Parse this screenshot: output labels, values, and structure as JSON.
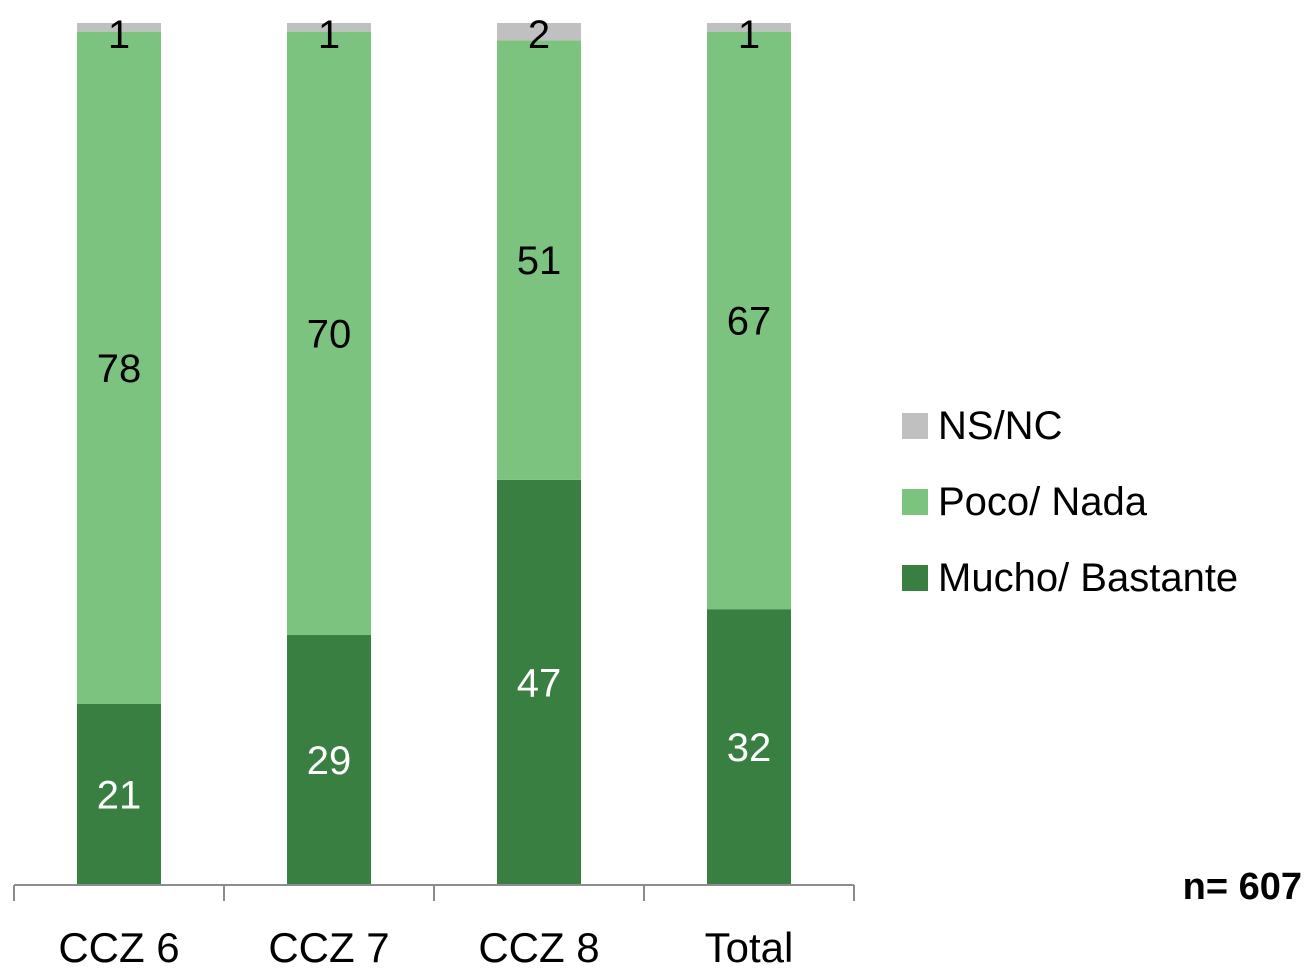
{
  "chart_data": {
    "type": "bar",
    "stacked": true,
    "categories": [
      "CCZ 6",
      "CCZ 7",
      "CCZ 8",
      "Total"
    ],
    "series": [
      {
        "name": "Mucho/ Bastante",
        "values": [
          21,
          29,
          47,
          32
        ],
        "color": "#3a7f42",
        "label_color": "#ffffff"
      },
      {
        "name": "Poco/ Nada",
        "values": [
          78,
          70,
          51,
          67
        ],
        "color": "#7bc37f",
        "label_color": "#000000"
      },
      {
        "name": "NS/NC",
        "values": [
          1,
          1,
          2,
          1
        ],
        "color": "#c0c0c0",
        "label_color": "#000000"
      }
    ],
    "legend_order": [
      "NS/NC",
      "Poco/ Nada",
      "Mucho/ Bastante"
    ],
    "legend_position": "right",
    "ylim": [
      0,
      100
    ],
    "grid": false,
    "note": "n= 607"
  }
}
